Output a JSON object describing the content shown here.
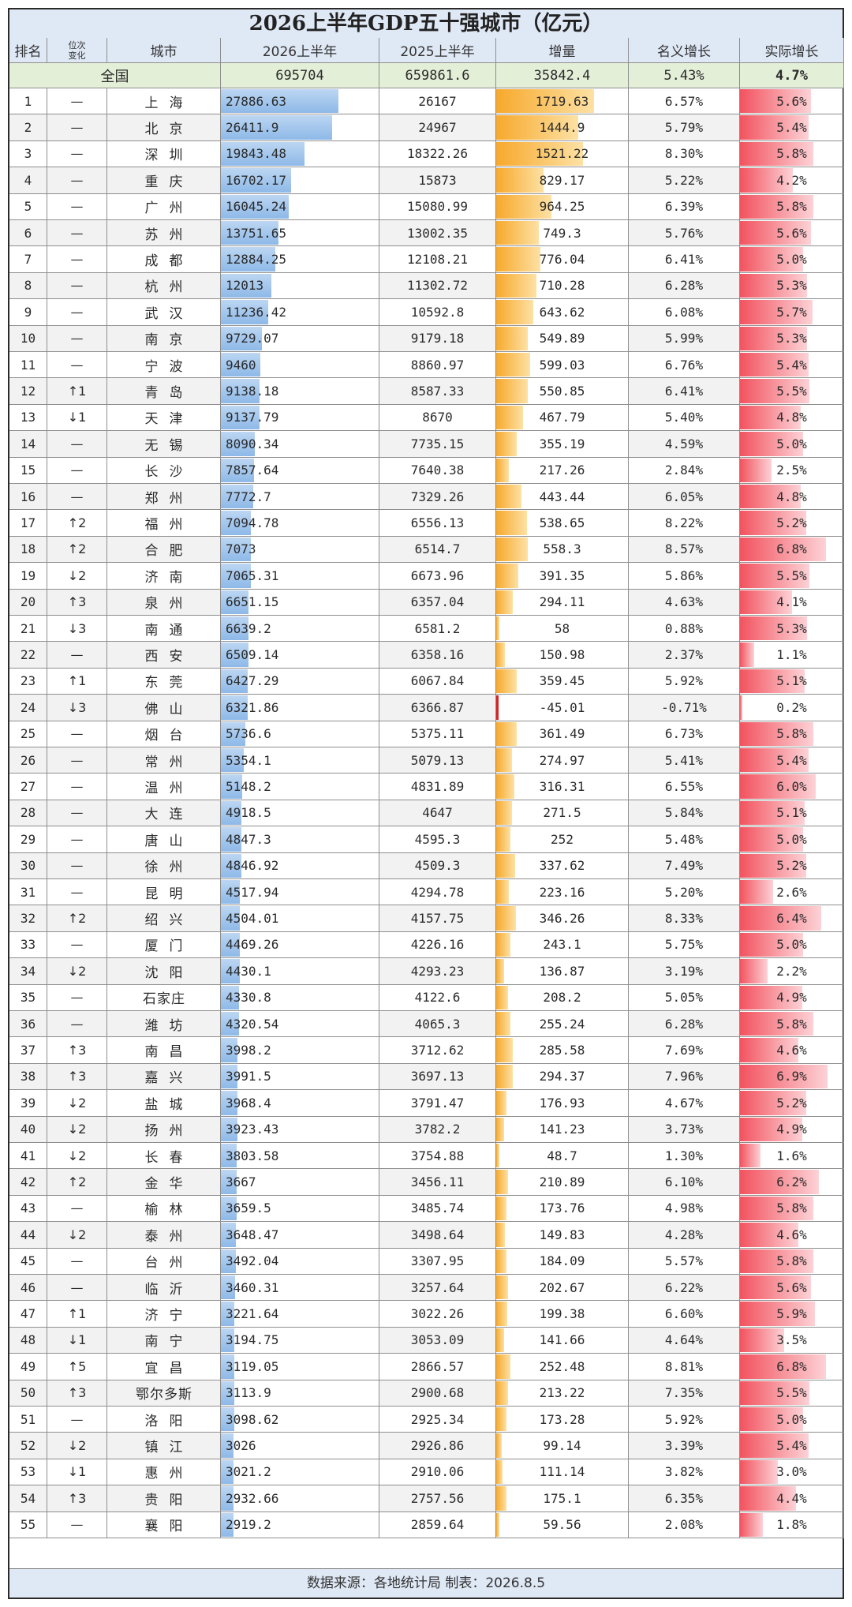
{
  "title": "2026上半年GDP五十强城市（亿元）",
  "headers": [
    "排名",
    "位次变化",
    "城市",
    "2026上半年",
    "2025上半年",
    "增量",
    "名义增长",
    "实际增长"
  ],
  "header_small": [
    "位次",
    "变化"
  ],
  "national": {
    "label": "全国",
    "gdp2026": "695704",
    "gdp2025": "659861.6",
    "increase": "35842.4",
    "nominal": "5.43%",
    "real": "4.7%"
  },
  "footer": "数据来源：各地统计局 制表：2026.8.5",
  "colors": {
    "header_bg": "#dfe8f5",
    "national_bg": "#e4efd8",
    "gdp_bar": "#8eb9e8",
    "increase_bar": "#f7a92c",
    "real_bar": "#f2535f",
    "negative_bar": "#d82323"
  },
  "chart_data": {
    "type": "table",
    "columns": [
      "rank",
      "change",
      "city",
      "gdp2026",
      "gdp2025",
      "increase",
      "nominal",
      "real"
    ],
    "rows": [
      [
        "1",
        "—",
        "上海",
        "27886.63",
        "26167",
        "1719.63",
        "6.57%",
        "5.6%"
      ],
      [
        "2",
        "—",
        "北京",
        "26411.9",
        "24967",
        "1444.9",
        "5.79%",
        "5.4%"
      ],
      [
        "3",
        "—",
        "深圳",
        "19843.48",
        "18322.26",
        "1521.22",
        "8.30%",
        "5.8%"
      ],
      [
        "4",
        "—",
        "重庆",
        "16702.17",
        "15873",
        "829.17",
        "5.22%",
        "4.2%"
      ],
      [
        "5",
        "—",
        "广州",
        "16045.24",
        "15080.99",
        "964.25",
        "6.39%",
        "5.8%"
      ],
      [
        "6",
        "—",
        "苏州",
        "13751.65",
        "13002.35",
        "749.3",
        "5.76%",
        "5.6%"
      ],
      [
        "7",
        "—",
        "成都",
        "12884.25",
        "12108.21",
        "776.04",
        "6.41%",
        "5.0%"
      ],
      [
        "8",
        "—",
        "杭州",
        "12013",
        "11302.72",
        "710.28",
        "6.28%",
        "5.3%"
      ],
      [
        "9",
        "—",
        "武汉",
        "11236.42",
        "10592.8",
        "643.62",
        "6.08%",
        "5.7%"
      ],
      [
        "10",
        "—",
        "南京",
        "9729.07",
        "9179.18",
        "549.89",
        "5.99%",
        "5.3%"
      ],
      [
        "11",
        "—",
        "宁波",
        "9460",
        "8860.97",
        "599.03",
        "6.76%",
        "5.4%"
      ],
      [
        "12",
        "↑1",
        "青岛",
        "9138.18",
        "8587.33",
        "550.85",
        "6.41%",
        "5.5%"
      ],
      [
        "13",
        "↓1",
        "天津",
        "9137.79",
        "8670",
        "467.79",
        "5.40%",
        "4.8%"
      ],
      [
        "14",
        "—",
        "无锡",
        "8090.34",
        "7735.15",
        "355.19",
        "4.59%",
        "5.0%"
      ],
      [
        "15",
        "—",
        "长沙",
        "7857.64",
        "7640.38",
        "217.26",
        "2.84%",
        "2.5%"
      ],
      [
        "16",
        "—",
        "郑州",
        "7772.7",
        "7329.26",
        "443.44",
        "6.05%",
        "4.8%"
      ],
      [
        "17",
        "↑2",
        "福州",
        "7094.78",
        "6556.13",
        "538.65",
        "8.22%",
        "5.2%"
      ],
      [
        "18",
        "↑2",
        "合肥",
        "7073",
        "6514.7",
        "558.3",
        "8.57%",
        "6.8%"
      ],
      [
        "19",
        "↓2",
        "济南",
        "7065.31",
        "6673.96",
        "391.35",
        "5.86%",
        "5.5%"
      ],
      [
        "20",
        "↑3",
        "泉州",
        "6651.15",
        "6357.04",
        "294.11",
        "4.63%",
        "4.1%"
      ],
      [
        "21",
        "↓3",
        "南通",
        "6639.2",
        "6581.2",
        "58",
        "0.88%",
        "5.3%"
      ],
      [
        "22",
        "—",
        "西安",
        "6509.14",
        "6358.16",
        "150.98",
        "2.37%",
        "1.1%"
      ],
      [
        "23",
        "↑1",
        "东莞",
        "6427.29",
        "6067.84",
        "359.45",
        "5.92%",
        "5.1%"
      ],
      [
        "24",
        "↓3",
        "佛山",
        "6321.86",
        "6366.87",
        "-45.01",
        "-0.71%",
        "0.2%"
      ],
      [
        "25",
        "—",
        "烟台",
        "5736.6",
        "5375.11",
        "361.49",
        "6.73%",
        "5.8%"
      ],
      [
        "26",
        "—",
        "常州",
        "5354.1",
        "5079.13",
        "274.97",
        "5.41%",
        "5.4%"
      ],
      [
        "27",
        "—",
        "温州",
        "5148.2",
        "4831.89",
        "316.31",
        "6.55%",
        "6.0%"
      ],
      [
        "28",
        "—",
        "大连",
        "4918.5",
        "4647",
        "271.5",
        "5.84%",
        "5.1%"
      ],
      [
        "29",
        "—",
        "唐山",
        "4847.3",
        "4595.3",
        "252",
        "5.48%",
        "5.0%"
      ],
      [
        "30",
        "—",
        "徐州",
        "4846.92",
        "4509.3",
        "337.62",
        "7.49%",
        "5.2%"
      ],
      [
        "31",
        "—",
        "昆明",
        "4517.94",
        "4294.78",
        "223.16",
        "5.20%",
        "2.6%"
      ],
      [
        "32",
        "↑2",
        "绍兴",
        "4504.01",
        "4157.75",
        "346.26",
        "8.33%",
        "6.4%"
      ],
      [
        "33",
        "—",
        "厦门",
        "4469.26",
        "4226.16",
        "243.1",
        "5.75%",
        "5.0%"
      ],
      [
        "34",
        "↓2",
        "沈阳",
        "4430.1",
        "4293.23",
        "136.87",
        "3.19%",
        "2.2%"
      ],
      [
        "35",
        "—",
        "石家庄",
        "4330.8",
        "4122.6",
        "208.2",
        "5.05%",
        "4.9%"
      ],
      [
        "36",
        "—",
        "潍坊",
        "4320.54",
        "4065.3",
        "255.24",
        "6.28%",
        "5.8%"
      ],
      [
        "37",
        "↑3",
        "南昌",
        "3998.2",
        "3712.62",
        "285.58",
        "7.69%",
        "4.6%"
      ],
      [
        "38",
        "↑3",
        "嘉兴",
        "3991.5",
        "3697.13",
        "294.37",
        "7.96%",
        "6.9%"
      ],
      [
        "39",
        "↓2",
        "盐城",
        "3968.4",
        "3791.47",
        "176.93",
        "4.67%",
        "5.2%"
      ],
      [
        "40",
        "↓2",
        "扬州",
        "3923.43",
        "3782.2",
        "141.23",
        "3.73%",
        "4.9%"
      ],
      [
        "41",
        "↓2",
        "长春",
        "3803.58",
        "3754.88",
        "48.7",
        "1.30%",
        "1.6%"
      ],
      [
        "42",
        "↑2",
        "金华",
        "3667",
        "3456.11",
        "210.89",
        "6.10%",
        "6.2%"
      ],
      [
        "43",
        "—",
        "榆林",
        "3659.5",
        "3485.74",
        "173.76",
        "4.98%",
        "5.8%"
      ],
      [
        "44",
        "↓2",
        "泰州",
        "3648.47",
        "3498.64",
        "149.83",
        "4.28%",
        "4.6%"
      ],
      [
        "45",
        "—",
        "台州",
        "3492.04",
        "3307.95",
        "184.09",
        "5.57%",
        "5.8%"
      ],
      [
        "46",
        "—",
        "临沂",
        "3460.31",
        "3257.64",
        "202.67",
        "6.22%",
        "5.6%"
      ],
      [
        "47",
        "↑1",
        "济宁",
        "3221.64",
        "3022.26",
        "199.38",
        "6.60%",
        "5.9%"
      ],
      [
        "48",
        "↓1",
        "南宁",
        "3194.75",
        "3053.09",
        "141.66",
        "4.64%",
        "3.5%"
      ],
      [
        "49",
        "↑5",
        "宜昌",
        "3119.05",
        "2866.57",
        "252.48",
        "8.81%",
        "6.8%"
      ],
      [
        "50",
        "↑3",
        "鄂尔多斯",
        "3113.9",
        "2900.68",
        "213.22",
        "7.35%",
        "5.5%"
      ],
      [
        "51",
        "—",
        "洛阳",
        "3098.62",
        "2925.34",
        "173.28",
        "5.92%",
        "5.0%"
      ],
      [
        "52",
        "↓2",
        "镇江",
        "3026",
        "2926.86",
        "99.14",
        "3.39%",
        "5.4%"
      ],
      [
        "53",
        "↓1",
        "惠州",
        "3021.2",
        "2910.06",
        "111.14",
        "3.82%",
        "3.0%"
      ],
      [
        "54",
        "↑3",
        "贵阳",
        "2932.66",
        "2757.56",
        "175.1",
        "6.35%",
        "4.4%"
      ],
      [
        "55",
        "—",
        "襄阳",
        "2919.2",
        "2859.64",
        "59.56",
        "2.08%",
        "1.8%"
      ]
    ],
    "bar_scale": {
      "gdp2026_max": 27886.63,
      "increase_max": 1719.63,
      "real_max": 6.9
    }
  }
}
